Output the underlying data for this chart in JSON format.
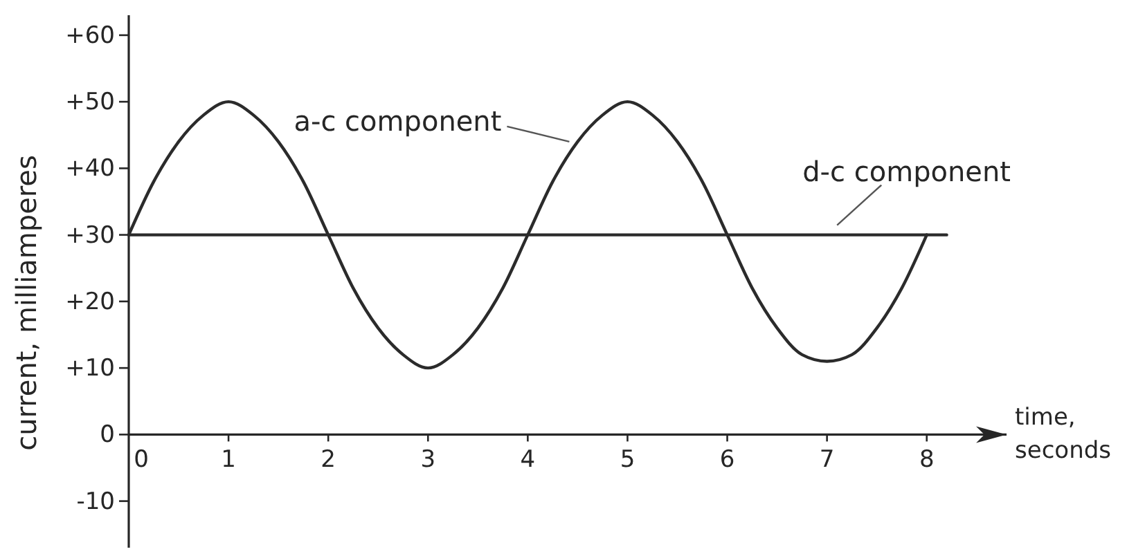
{
  "chart_data": {
    "type": "line",
    "xlabel": "time, seconds",
    "ylabel": "current, milliamperes",
    "xlim": [
      0,
      8.8
    ],
    "xticks": [
      0,
      1,
      2,
      3,
      4,
      5,
      6,
      7,
      8
    ],
    "ylim": [
      -17,
      63
    ],
    "yticks": [
      {
        "value": 60,
        "label": "+60"
      },
      {
        "value": 50,
        "label": "+50"
      },
      {
        "value": 40,
        "label": "+40"
      },
      {
        "value": 30,
        "label": "+30"
      },
      {
        "value": 20,
        "label": "+20"
      },
      {
        "value": 10,
        "label": "+10"
      },
      0,
      -10
    ],
    "series": [
      {
        "name": "a-c component",
        "color": "#2b2b2b",
        "x": [
          0,
          0.25,
          0.5,
          0.75,
          1,
          1.25,
          1.5,
          1.75,
          2,
          2.25,
          2.5,
          2.75,
          3,
          3.25,
          3.5,
          3.75,
          4,
          4.25,
          4.5,
          4.75,
          5,
          5.25,
          5.5,
          5.75,
          6,
          6.25,
          6.5,
          6.75,
          7,
          7.25,
          7.5,
          7.75,
          8
        ],
        "values": [
          30,
          38,
          44,
          48,
          50,
          48,
          44,
          38,
          30,
          22,
          16,
          12,
          10,
          12,
          16,
          22,
          30,
          38,
          44,
          48,
          50,
          48,
          44,
          38,
          30,
          22,
          16,
          12,
          11,
          12,
          16,
          22,
          30
        ]
      },
      {
        "name": "d-c component",
        "color": "#2b2b2b",
        "x": [
          0,
          8.2
        ],
        "values": [
          30,
          30
        ]
      }
    ]
  }
}
